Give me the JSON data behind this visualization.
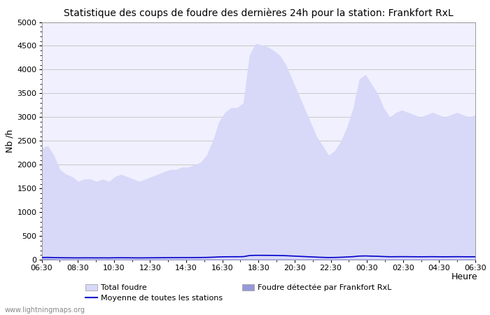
{
  "title": "Statistique des coups de foudre des dernières 24h pour la station: Frankfort RxL",
  "xlabel": "Heure",
  "ylabel": "Nb /h",
  "ylim": [
    0,
    5000
  ],
  "yticks": [
    0,
    500,
    1000,
    1500,
    2000,
    2500,
    3000,
    3500,
    4000,
    4500,
    5000
  ],
  "xtick_labels": [
    "06:30",
    "08:30",
    "10:30",
    "12:30",
    "14:30",
    "16:30",
    "18:30",
    "20:30",
    "22:30",
    "00:30",
    "02:30",
    "04:30",
    "06:30"
  ],
  "bg_color": "#ffffff",
  "plot_bg_color": "#f0f0ff",
  "grid_color": "#c8c8c8",
  "fill_total_color": "#d8d8f8",
  "fill_station_color": "#9898d8",
  "line_color": "#0000cc",
  "watermark": "www.lightningmaps.org",
  "legend_row1": [
    {
      "label": "Total foudre",
      "color": "#d8d8f8",
      "type": "fill"
    },
    {
      "label": "Moyenne de toutes les stations",
      "color": "#0000cc",
      "type": "line"
    }
  ],
  "legend_row2": [
    {
      "label": "Foudre détectée par Frankfort RxL",
      "color": "#9898d8",
      "type": "fill"
    }
  ],
  "total_foudre": [
    2350,
    2400,
    2200,
    1900,
    1800,
    1750,
    1650,
    1700,
    1700,
    1650,
    1700,
    1650,
    1750,
    1800,
    1750,
    1700,
    1650,
    1700,
    1750,
    1800,
    1850,
    1900,
    1900,
    1950,
    1950,
    2000,
    2050,
    2200,
    2500,
    2900,
    3100,
    3200,
    3200,
    3300,
    4300,
    4550,
    4520,
    4480,
    4400,
    4300,
    4100,
    3800,
    3500,
    3200,
    2900,
    2600,
    2400,
    2200,
    2300,
    2500,
    2800,
    3200,
    3800,
    3900,
    3700,
    3500,
    3200,
    3000,
    3100,
    3150,
    3100,
    3050,
    3000,
    3050,
    3100,
    3050,
    3000,
    3050,
    3100,
    3050,
    3000,
    3050
  ],
  "station_foudre": [
    30,
    30,
    25,
    20,
    20,
    18,
    18,
    18,
    18,
    18,
    18,
    18,
    18,
    18,
    18,
    18,
    18,
    18,
    18,
    18,
    18,
    18,
    18,
    18,
    18,
    18,
    18,
    18,
    18,
    18,
    18,
    18,
    18,
    18,
    18,
    18,
    18,
    18,
    18,
    18,
    18,
    18,
    18,
    18,
    18,
    18,
    18,
    18,
    18,
    18,
    18,
    18,
    18,
    18,
    18,
    18,
    18,
    18,
    18,
    18,
    18,
    18,
    18,
    18,
    18,
    18,
    18,
    18,
    18,
    18,
    18,
    18
  ],
  "moyenne_stations": [
    50,
    52,
    48,
    45,
    44,
    43,
    42,
    43,
    43,
    42,
    43,
    42,
    44,
    45,
    44,
    43,
    42,
    43,
    44,
    45,
    46,
    47,
    47,
    48,
    48,
    49,
    50,
    52,
    56,
    62,
    65,
    66,
    66,
    68,
    90,
    96,
    96,
    95,
    94,
    91,
    88,
    82,
    76,
    70,
    64,
    58,
    53,
    49,
    51,
    55,
    61,
    68,
    80,
    83,
    79,
    76,
    70,
    66,
    67,
    68,
    67,
    66,
    65,
    66,
    67,
    66,
    65,
    66,
    67,
    66,
    65,
    66
  ]
}
